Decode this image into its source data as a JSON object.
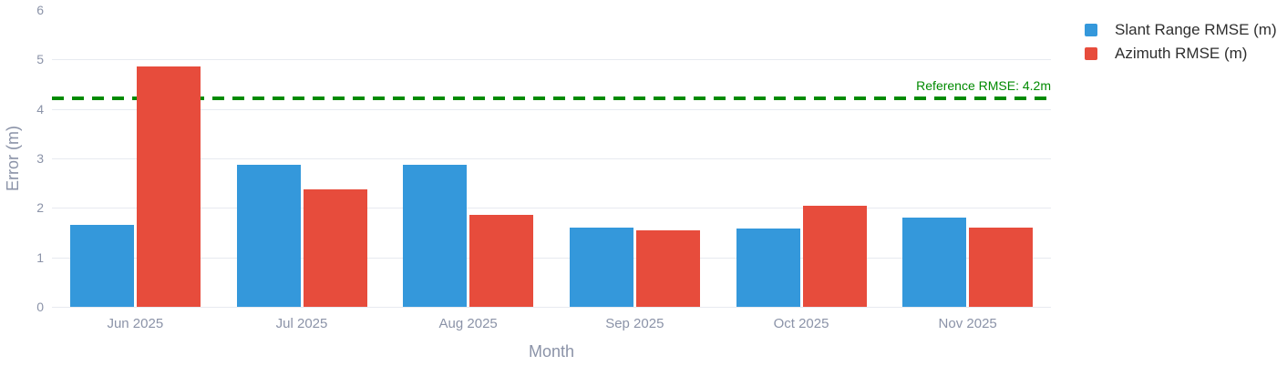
{
  "chart_data": {
    "type": "bar",
    "title": "",
    "xlabel": "Month",
    "ylabel": "Error (m)",
    "categories": [
      "Jun 2025",
      "Jul 2025",
      "Aug 2025",
      "Sep 2025",
      "Oct 2025",
      "Nov 2025"
    ],
    "series": [
      {
        "name": "Slant Range RMSE (m)",
        "color": "#3498db",
        "values": [
          1.65,
          2.88,
          2.88,
          1.6,
          1.58,
          1.8
        ]
      },
      {
        "name": "Azimuth RMSE (m)",
        "color": "#e74c3c",
        "values": [
          4.85,
          2.38,
          1.85,
          1.55,
          2.05,
          1.6
        ]
      }
    ],
    "ylim": [
      0,
      6
    ],
    "yticks": [
      0,
      1,
      2,
      3,
      4,
      5,
      6
    ],
    "grid": true,
    "legend_position": "top-right",
    "reference_line": {
      "label": "Reference RMSE: 4.2m",
      "value": 4.2,
      "color": "#008a00",
      "style": "dashed"
    }
  },
  "colors": {
    "background": "#ffffff",
    "gridline": "#e7eaf0",
    "axis_text": "#8b93a8",
    "legend_text": "#2f2f2f"
  }
}
